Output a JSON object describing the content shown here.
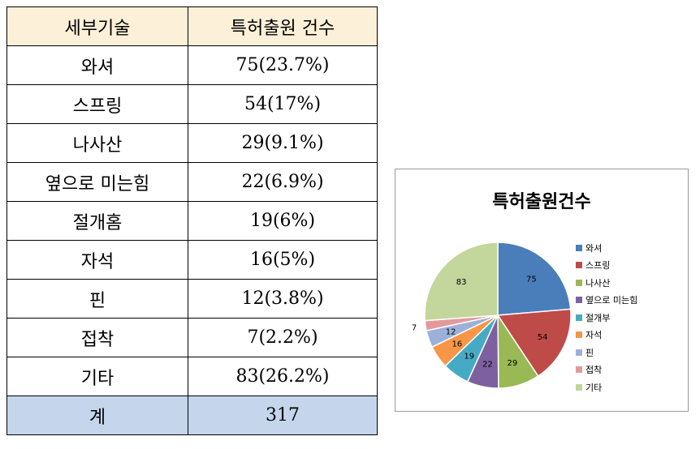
{
  "table": {
    "header": [
      "세부기술",
      "특허출원 건수"
    ],
    "rows": [
      [
        "와셔",
        "75(23.7%)"
      ],
      [
        "스프링",
        "54(17%)"
      ],
      [
        "나사산",
        "29(9.1%)"
      ],
      [
        "옆으로 미는힘",
        "22(6.9%)"
      ],
      [
        "절개홈",
        "19(6%)"
      ],
      [
        "자석",
        "16(5%)"
      ],
      [
        "핀",
        "12(3.8%)"
      ],
      [
        "접착",
        "7(2.2%)"
      ],
      [
        "기타",
        "83(26.2%)"
      ]
    ],
    "total": [
      "계",
      "317"
    ]
  },
  "chart_data": {
    "type": "pie",
    "title": "특허출원건수",
    "categories": [
      "와셔",
      "스프링",
      "나사산",
      "옆으로 미는힘",
      "절개부",
      "자석",
      "핀",
      "접착",
      "기타"
    ],
    "values": [
      75,
      54,
      29,
      22,
      19,
      16,
      12,
      7,
      83
    ],
    "colors": [
      "#4a7ebb",
      "#be4b48",
      "#98b954",
      "#7d60a0",
      "#46aac5",
      "#f79646",
      "#9cb1d9",
      "#e3999a",
      "#c3d69b"
    ],
    "legend": "right",
    "data_labels": true,
    "start_angle": "12 o'clock",
    "direction": "clockwise"
  }
}
